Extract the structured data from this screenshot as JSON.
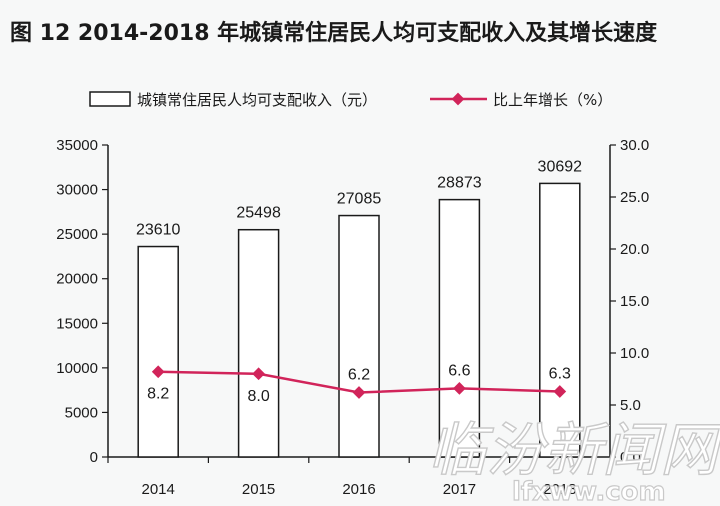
{
  "chart_data": {
    "type": "bar",
    "title": "图 12   2014-2018 年城镇常住居民人均可支配收入及其增长速度",
    "categories": [
      "2014",
      "2015",
      "2016",
      "2017",
      "2018"
    ],
    "series": [
      {
        "name": "城镇常住居民人均可支配收入（元）",
        "type": "bar",
        "axis": "left",
        "values": [
          23610,
          25498,
          27085,
          28873,
          30692
        ],
        "labels": [
          "23610",
          "25498",
          "27085",
          "28873",
          "30692"
        ]
      },
      {
        "name": "比上年增长（%）",
        "type": "line",
        "axis": "right",
        "values": [
          8.2,
          8.0,
          6.2,
          6.6,
          6.3
        ],
        "labels": [
          "8.2",
          "8.0",
          "6.2",
          "6.6",
          "6.3"
        ],
        "color": "#d1245a"
      }
    ],
    "y_left": {
      "min": 0,
      "max": 35000,
      "ticks": [
        0,
        5000,
        10000,
        15000,
        20000,
        25000,
        30000,
        35000
      ],
      "tick_labels": [
        "0",
        "5000",
        "10000",
        "15000",
        "20000",
        "25000",
        "30000",
        "35000"
      ]
    },
    "y_right": {
      "min": 0,
      "max": 30,
      "ticks": [
        0,
        5,
        10,
        15,
        20,
        25,
        30
      ],
      "tick_labels": [
        "0.0",
        "5.0",
        "10.0",
        "15.0",
        "20.0",
        "25.0",
        "30.0"
      ]
    },
    "grid": false,
    "legend_position": "top"
  },
  "watermark": {
    "text": "临汾新闻网",
    "url": "lfxww.com"
  },
  "colors": {
    "line": "#d1245a",
    "axis": "#1a1a1a",
    "bar_fill": "#ffffff"
  }
}
